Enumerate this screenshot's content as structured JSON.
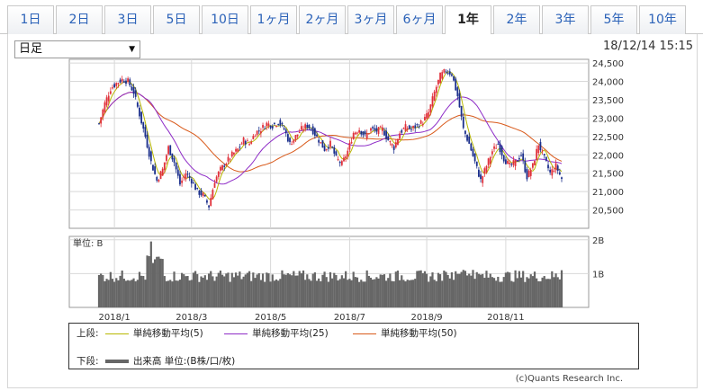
{
  "tabs": [
    {
      "label": "1日",
      "active": false
    },
    {
      "label": "2日",
      "active": false
    },
    {
      "label": "3日",
      "active": false
    },
    {
      "label": "5日",
      "active": false
    },
    {
      "label": "10日",
      "active": false
    },
    {
      "label": "1ヶ月",
      "active": false
    },
    {
      "label": "2ヶ月",
      "active": false
    },
    {
      "label": "3ヶ月",
      "active": false
    },
    {
      "label": "6ヶ月",
      "active": false
    },
    {
      "label": "1年",
      "active": true
    },
    {
      "label": "2年",
      "active": false
    },
    {
      "label": "3年",
      "active": false
    },
    {
      "label": "5年",
      "active": false
    },
    {
      "label": "10年",
      "active": false
    }
  ],
  "period_select": {
    "value": "日足"
  },
  "timestamp": "18/12/14 15:15",
  "chart_data": {
    "type": "candlestick",
    "price": {
      "ylim": [
        20000,
        24600
      ],
      "yticks": [
        "24,500",
        "24,000",
        "23,500",
        "23,000",
        "22,500",
        "22,000",
        "21,500",
        "21,000",
        "20,500"
      ],
      "ytick_values": [
        24500,
        24000,
        23500,
        23000,
        22500,
        22000,
        21500,
        21000,
        20500
      ],
      "close_series": [
        [
          0,
          22850
        ],
        [
          3,
          23400
        ],
        [
          6,
          23800
        ],
        [
          9,
          23950
        ],
        [
          12,
          24050
        ],
        [
          15,
          24000
        ],
        [
          18,
          23700
        ],
        [
          21,
          23100
        ],
        [
          24,
          22500
        ],
        [
          27,
          21800
        ],
        [
          30,
          21300
        ],
        [
          33,
          21600
        ],
        [
          36,
          22200
        ],
        [
          39,
          21800
        ],
        [
          42,
          21200
        ],
        [
          45,
          21500
        ],
        [
          48,
          21300
        ],
        [
          51,
          21000
        ],
        [
          54,
          20900
        ],
        [
          57,
          20600
        ],
        [
          60,
          21300
        ],
        [
          63,
          21600
        ],
        [
          66,
          21800
        ],
        [
          69,
          22000
        ],
        [
          72,
          22150
        ],
        [
          75,
          22400
        ],
        [
          78,
          22300
        ],
        [
          81,
          22600
        ],
        [
          84,
          22700
        ],
        [
          87,
          22850
        ],
        [
          90,
          22800
        ],
        [
          93,
          22900
        ],
        [
          96,
          22700
        ],
        [
          99,
          22300
        ],
        [
          102,
          22500
        ],
        [
          105,
          22700
        ],
        [
          108,
          22800
        ],
        [
          111,
          22650
        ],
        [
          114,
          22400
        ],
        [
          117,
          22150
        ],
        [
          120,
          22300
        ],
        [
          123,
          21900
        ],
        [
          126,
          21750
        ],
        [
          129,
          22100
        ],
        [
          132,
          22600
        ],
        [
          135,
          22700
        ],
        [
          138,
          22500
        ],
        [
          141,
          22700
        ],
        [
          144,
          22650
        ],
        [
          147,
          22700
        ],
        [
          150,
          22400
        ],
        [
          153,
          22200
        ],
        [
          156,
          22600
        ],
        [
          159,
          22750
        ],
        [
          162,
          22700
        ],
        [
          165,
          22800
        ],
        [
          168,
          22900
        ],
        [
          171,
          23150
        ],
        [
          174,
          23700
        ],
        [
          177,
          24150
        ],
        [
          180,
          24300
        ],
        [
          183,
          24200
        ],
        [
          186,
          23600
        ],
        [
          189,
          22700
        ],
        [
          192,
          22300
        ],
        [
          195,
          21800
        ],
        [
          198,
          21300
        ],
        [
          201,
          21700
        ],
        [
          204,
          22100
        ],
        [
          207,
          22300
        ],
        [
          210,
          21900
        ],
        [
          213,
          21700
        ],
        [
          216,
          21800
        ],
        [
          219,
          22000
        ],
        [
          222,
          21400
        ],
        [
          225,
          21700
        ],
        [
          228,
          22300
        ],
        [
          231,
          21900
        ],
        [
          234,
          21500
        ],
        [
          237,
          21700
        ],
        [
          240,
          21350
        ]
      ],
      "ma5_label": "単純移動平均(5)",
      "ma25_label": "単純移動平均(25)",
      "ma50_label": "単純移動平均(50)",
      "colors": {
        "up": "#e0303a",
        "down": "#1b2f8c",
        "ma5": "#b7b700",
        "ma25": "#8e2cc7",
        "ma50": "#d95a1b"
      }
    },
    "volume": {
      "unit_label": "単位: B",
      "ylim": [
        0,
        2.1
      ],
      "yticks": [
        "2B",
        "1B"
      ],
      "ytick_values": [
        2,
        1
      ],
      "label": "出来高 単位:(B株/口/枚)",
      "color": "#666666"
    },
    "x_ticks": [
      "2018/1",
      "2018/3",
      "2018/5",
      "2018/7",
      "2018/9",
      "2018/11"
    ],
    "x_tick_index": [
      8,
      48,
      89,
      130,
      170,
      211
    ],
    "n_days": 241
  },
  "legend": {
    "upper_label": "上段:",
    "lower_label": "下段:",
    "ma5": "単純移動平均(5)",
    "ma25": "単純移動平均(25)",
    "ma50": "単純移動平均(50)",
    "volume": "出来高 単位:(B株/口/枚)"
  },
  "copyright": "(c)Quants Research Inc."
}
